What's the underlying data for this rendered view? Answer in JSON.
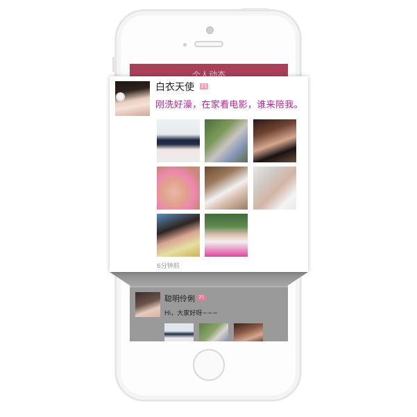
{
  "app": {
    "header_title": "个人动态"
  },
  "post": {
    "user_name": "白衣天使",
    "age_badge": "21",
    "text": "刚洗好澡，在家看电影，谁来陪我。",
    "time": "6分钟前",
    "photos": [
      "photo-1",
      "photo-2",
      "photo-3",
      "photo-4",
      "photo-5",
      "photo-6",
      "photo-7",
      "photo-8"
    ]
  },
  "next_post": {
    "user_name": "聪明伶俐",
    "age_badge": "21",
    "text": "Hi，大家好呀~~~"
  },
  "colors": {
    "accent": "#a9405a",
    "post_text": "#c21f9b",
    "badge": "#f2a2b6"
  }
}
